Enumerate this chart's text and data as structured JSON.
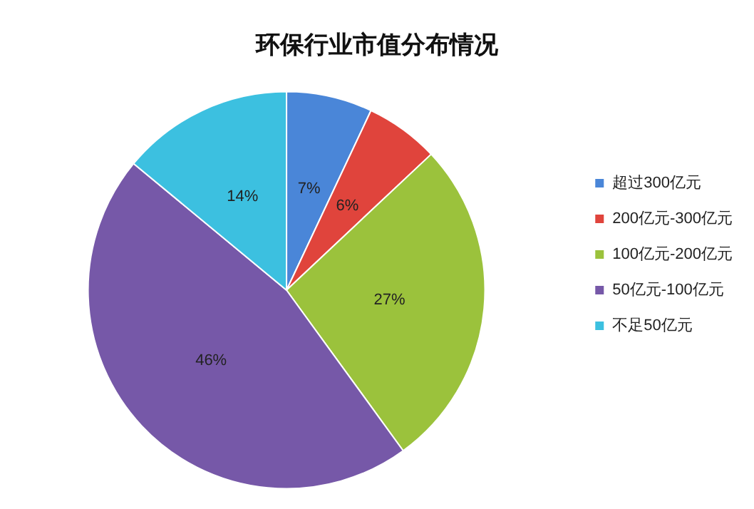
{
  "chart_data": {
    "type": "pie",
    "title": "环保行业市值分布情况",
    "categories": [
      "超过300亿元",
      "200亿元-300亿元",
      "100亿元-200亿元",
      "50亿元-100亿元",
      "不足50亿元"
    ],
    "values": [
      7,
      6,
      27,
      46,
      14
    ],
    "colors": [
      "#4a86d8",
      "#e0443c",
      "#9bc23c",
      "#7658a8",
      "#3cc0e0"
    ],
    "value_labels": [
      "7%",
      "6%",
      "27%",
      "46%",
      "14%"
    ],
    "legend": "right"
  }
}
